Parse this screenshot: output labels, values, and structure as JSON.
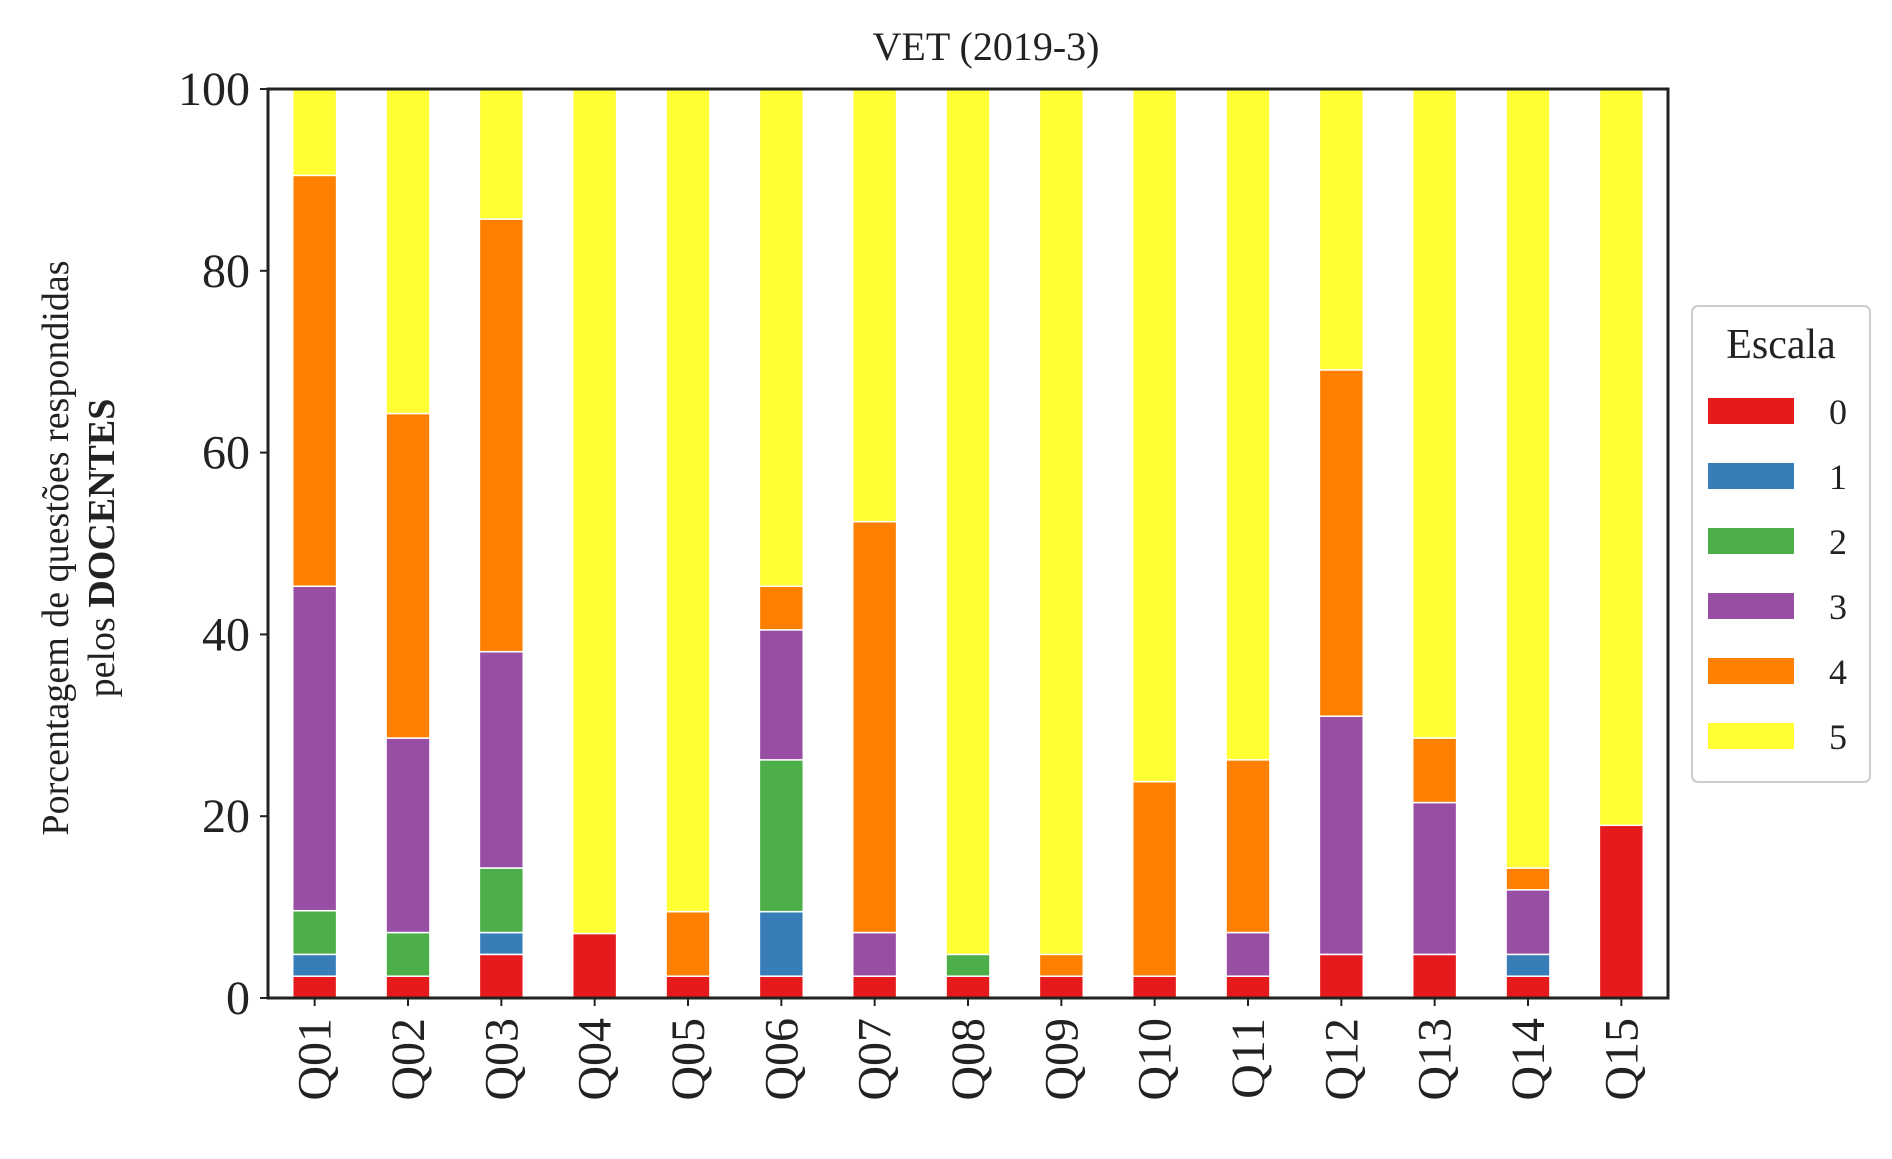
{
  "chart_data": {
    "type": "bar",
    "stacked": true,
    "title": "VET (2019-3)",
    "ylabel_line1": "Porcentagem de questões respondidas",
    "ylabel_line2_prefix": "pelos ",
    "ylabel_line2_bold": "DOCENTES",
    "xlabel": "",
    "ylim": [
      0,
      100
    ],
    "yticks": [
      "0",
      "20",
      "40",
      "60",
      "80",
      "100"
    ],
    "grid": false,
    "legend": {
      "title": "Escala",
      "placement": "center-right-outside"
    },
    "categories": [
      "Q01",
      "Q02",
      "Q03",
      "Q04",
      "Q05",
      "Q06",
      "Q07",
      "Q08",
      "Q09",
      "Q10",
      "Q11",
      "Q12",
      "Q13",
      "Q14",
      "Q15"
    ],
    "series": [
      {
        "name": "0",
        "color": "#e41a1c",
        "values": [
          2.4,
          2.4,
          4.8,
          7.1,
          2.4,
          2.4,
          2.4,
          2.4,
          2.4,
          2.4,
          2.4,
          4.8,
          4.8,
          2.4,
          19.0
        ]
      },
      {
        "name": "1",
        "color": "#377eb8",
        "values": [
          2.4,
          0,
          2.4,
          0,
          0,
          7.1,
          0,
          0,
          0,
          0,
          0,
          0,
          0,
          2.4,
          0
        ]
      },
      {
        "name": "2",
        "color": "#4daf4a",
        "values": [
          4.8,
          4.8,
          7.1,
          0,
          0,
          16.7,
          0,
          2.4,
          0,
          0,
          0,
          0,
          0,
          0,
          0
        ]
      },
      {
        "name": "3",
        "color": "#984ea3",
        "values": [
          35.7,
          21.4,
          23.8,
          0,
          0,
          14.3,
          4.8,
          0,
          0,
          0,
          4.8,
          26.2,
          16.7,
          7.1,
          0
        ]
      },
      {
        "name": "4",
        "color": "#ff7f00",
        "values": [
          45.2,
          35.7,
          47.6,
          0,
          7.1,
          4.8,
          45.2,
          0,
          2.4,
          21.4,
          19.0,
          38.1,
          7.1,
          2.4,
          0
        ]
      },
      {
        "name": "5",
        "color": "#ffff33",
        "values": [
          9.5,
          35.7,
          14.3,
          92.9,
          90.5,
          54.7,
          47.6,
          95.2,
          95.2,
          76.2,
          73.8,
          30.9,
          71.4,
          85.7,
          81.0
        ]
      }
    ]
  }
}
